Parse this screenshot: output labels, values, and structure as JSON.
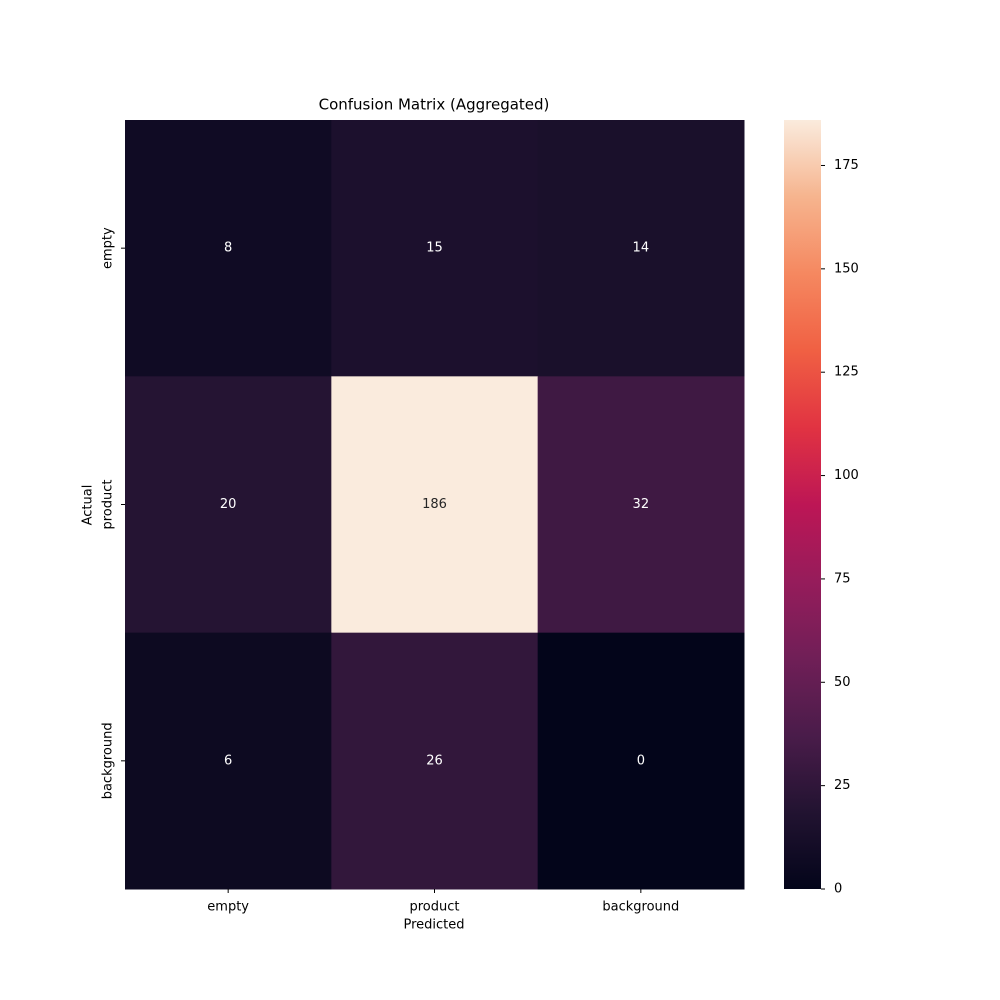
{
  "chart_data": {
    "type": "heatmap",
    "title": "Confusion Matrix (Aggregated)",
    "x_label": "Predicted",
    "y_label": "Actual",
    "x_categories": [
      "empty",
      "product",
      "background"
    ],
    "y_categories": [
      "empty",
      "product",
      "background"
    ],
    "values": [
      [
        8,
        15,
        14
      ],
      [
        20,
        186,
        32
      ],
      [
        6,
        26,
        0
      ]
    ],
    "colormap": "rocket",
    "clim": [
      0,
      186
    ],
    "cticks": [
      0,
      25,
      50,
      75,
      100,
      125,
      150,
      175
    ]
  }
}
